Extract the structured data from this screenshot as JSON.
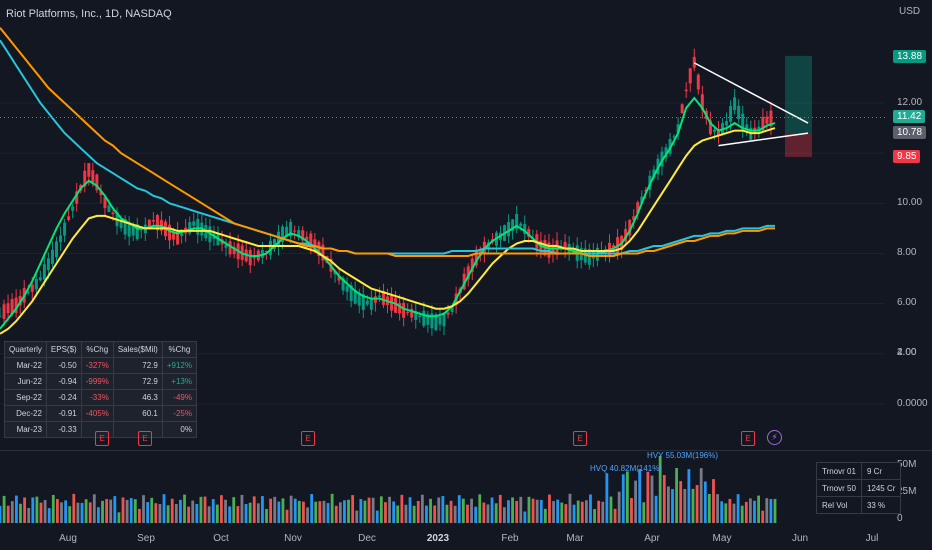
{
  "header": {
    "title": "Riot Platforms, Inc., 1D, NASDAQ",
    "currency": "USD"
  },
  "price_axis": [
    "12.00",
    "10.00",
    "8.00",
    "6.00",
    "4.00",
    "2.00",
    "0.0000"
  ],
  "price_tags": [
    {
      "label": "13.88",
      "color": "#089981"
    },
    {
      "label": "11.42",
      "color": "#22ab94"
    },
    {
      "label": "10.78",
      "color": "#5d606b"
    },
    {
      "label": "9.85",
      "color": "#f23645"
    }
  ],
  "volume_axis": [
    "50M",
    "25M",
    "0"
  ],
  "months": [
    "Aug",
    "Sep",
    "Oct",
    "Nov",
    "Dec",
    "2023",
    "Feb",
    "Mar",
    "Apr",
    "May",
    "Jun",
    "Jul"
  ],
  "eps_table": {
    "headers": [
      "Quarterly",
      "EPS($)",
      "%Chg",
      "Sales($Mil)",
      "%Chg"
    ],
    "rows": [
      [
        "Mar-22",
        "-0.50",
        "-327%",
        "72.9",
        "+912%"
      ],
      [
        "Jun-22",
        "-0.94",
        "-999%",
        "72.9",
        "+13%"
      ],
      [
        "Sep-22",
        "-0.24",
        "-33%",
        "46.3",
        "-49%"
      ],
      [
        "Dec-22",
        "-0.91",
        "-405%",
        "60.1",
        "-25%"
      ],
      [
        "Mar-23",
        "-0.33",
        "",
        "",
        "0%"
      ]
    ]
  },
  "turnover_table": [
    [
      "Trnovr 01",
      "9 Cr"
    ],
    [
      "Trnovr 50",
      "1245 Cr"
    ],
    [
      "Rel Vol",
      "33 %"
    ]
  ],
  "volume_notes": [
    "HVQ 40.82M(141%)",
    "HVY 55.03M(196%)"
  ],
  "earnings_marker": "E",
  "chart_data": {
    "type": "candlestick",
    "ylim": [
      -0.7,
      15.0
    ],
    "date_range": [
      "2022-07-05",
      "2023-05-19"
    ],
    "close_series_approx": [
      3.5,
      3.8,
      3.9,
      4.3,
      4.6,
      5.0,
      5.6,
      6.2,
      7.0,
      7.8,
      8.6,
      9.3,
      8.8,
      8.0,
      7.6,
      7.2,
      7.0,
      6.9,
      7.0,
      7.3,
      7.1,
      6.8,
      6.6,
      6.9,
      7.2,
      7.0,
      6.8,
      6.6,
      6.3,
      6.1,
      6.0,
      5.8,
      5.9,
      6.1,
      6.4,
      6.8,
      7.0,
      6.8,
      6.6,
      6.3,
      6.0,
      5.5,
      5.0,
      4.6,
      4.3,
      4.1,
      4.0,
      4.3,
      4.1,
      3.9,
      3.7,
      3.6,
      3.5,
      3.4,
      3.3,
      3.4,
      3.8,
      4.5,
      5.2,
      5.8,
      6.2,
      6.5,
      6.7,
      7.0,
      7.3,
      7.0,
      6.6,
      6.3,
      6.1,
      6.2,
      6.3,
      6.1,
      6.0,
      5.9,
      6.0,
      6.1,
      6.2,
      6.4,
      7.0,
      7.8,
      8.5,
      9.2,
      9.8,
      10.3,
      11.0,
      12.5,
      13.6,
      12.0,
      11.0,
      10.8,
      11.2,
      12.0,
      11.3,
      10.8,
      11.0,
      11.3,
      11.4
    ],
    "moving_averages": [
      {
        "color": "#00e676",
        "values": [
          3.0,
          3.4,
          3.8,
          4.3,
          4.9,
          5.6,
          6.3,
          7.0,
          7.6,
          8.1,
          8.6,
          8.9,
          8.7,
          8.3,
          7.8,
          7.4,
          7.2,
          7.0,
          7.0,
          7.1,
          7.1,
          6.9,
          6.8,
          6.9,
          7.0,
          7.0,
          6.8,
          6.6,
          6.4,
          6.2,
          6.0,
          5.9,
          5.9,
          6.0,
          6.3,
          6.6,
          6.8,
          6.7,
          6.5,
          6.2,
          5.9,
          5.5,
          5.1,
          4.8,
          4.5,
          4.3,
          4.2,
          4.2,
          4.1,
          4.0,
          3.8,
          3.7,
          3.6,
          3.5,
          3.5,
          3.6,
          3.9,
          4.5,
          5.1,
          5.7,
          6.2,
          6.5,
          6.7,
          6.9,
          7.1,
          6.9,
          6.6,
          6.3,
          6.2,
          6.2,
          6.2,
          6.1,
          6.0,
          6.0,
          6.0,
          6.1,
          6.2,
          6.4,
          6.9,
          7.6,
          8.4,
          9.1,
          9.7,
          10.2,
          10.8,
          11.8,
          12.2,
          11.8,
          11.2,
          10.9,
          11.0,
          11.2,
          11.0,
          10.9,
          10.9,
          11.1,
          11.2
        ]
      },
      {
        "color": "#ffeb3b",
        "values": [
          2.8,
          3.0,
          3.3,
          3.7,
          4.1,
          4.6,
          5.1,
          5.6,
          6.1,
          6.6,
          7.0,
          7.4,
          7.5,
          7.5,
          7.4,
          7.3,
          7.2,
          7.1,
          7.0,
          7.0,
          7.0,
          7.0,
          6.9,
          6.9,
          6.9,
          6.9,
          6.9,
          6.8,
          6.7,
          6.6,
          6.5,
          6.4,
          6.3,
          6.3,
          6.3,
          6.3,
          6.3,
          6.3,
          6.2,
          6.1,
          5.9,
          5.7,
          5.4,
          5.2,
          5.0,
          4.8,
          4.6,
          4.5,
          4.4,
          4.3,
          4.2,
          4.1,
          4.0,
          3.9,
          3.8,
          3.8,
          3.9,
          4.1,
          4.4,
          4.8,
          5.2,
          5.6,
          5.9,
          6.2,
          6.4,
          6.5,
          6.5,
          6.4,
          6.3,
          6.3,
          6.2,
          6.2,
          6.1,
          6.1,
          6.1,
          6.1,
          6.1,
          6.2,
          6.5,
          6.9,
          7.4,
          7.9,
          8.4,
          8.9,
          9.4,
          9.9,
          10.3,
          10.5,
          10.6,
          10.7,
          10.8,
          10.9,
          10.9,
          10.8,
          10.8,
          10.9,
          11.0
        ]
      },
      {
        "color": "#26c6da",
        "values": [
          14.5,
          14.0,
          13.5,
          13.0,
          12.5,
          12.0,
          11.6,
          11.2,
          10.8,
          10.5,
          10.2,
          9.9,
          9.6,
          9.4,
          9.2,
          9.0,
          8.8,
          8.6,
          8.5,
          8.3,
          8.2,
          8.0,
          7.9,
          7.8,
          7.7,
          7.6,
          7.5,
          7.4,
          7.3,
          7.2,
          7.1,
          7.0,
          6.9,
          6.8,
          6.7,
          6.6,
          6.5,
          6.4,
          6.4,
          6.3,
          6.2,
          6.2,
          6.1,
          6.1,
          6.0,
          6.0,
          6.0,
          6.0,
          6.0,
          6.0,
          6.0,
          6.0,
          6.0,
          6.0,
          6.0,
          6.0,
          6.1,
          6.1,
          6.1,
          6.1,
          6.2,
          6.2,
          6.2,
          6.2,
          6.2,
          6.2,
          6.2,
          6.1,
          6.1,
          6.0,
          6.0,
          6.0,
          6.0,
          6.0,
          6.0,
          6.0,
          6.0,
          6.0,
          6.1,
          6.1,
          6.2,
          6.3,
          6.3,
          6.4,
          6.5,
          6.6,
          6.7,
          6.7,
          6.8,
          6.8,
          6.9,
          6.9,
          7.0,
          7.0,
          7.0,
          7.1,
          7.1
        ]
      },
      {
        "color": "#ff9800",
        "values": [
          15.0,
          14.6,
          14.2,
          13.8,
          13.4,
          13.0,
          12.6,
          12.3,
          12.0,
          11.7,
          11.4,
          11.1,
          10.8,
          10.5,
          10.3,
          10.0,
          9.8,
          9.6,
          9.4,
          9.2,
          9.0,
          8.8,
          8.6,
          8.4,
          8.2,
          8.0,
          7.8,
          7.6,
          7.4,
          7.2,
          7.1,
          7.0,
          6.9,
          6.8,
          6.7,
          6.6,
          6.5,
          6.4,
          6.3,
          6.3,
          6.2,
          6.2,
          6.1,
          6.1,
          6.0,
          6.0,
          6.0,
          6.0,
          6.0,
          5.9,
          5.9,
          5.9,
          5.9,
          5.9,
          5.9,
          5.9,
          5.9,
          5.9,
          5.9,
          6.0,
          6.0,
          6.0,
          6.0,
          6.0,
          6.0,
          6.0,
          6.0,
          6.0,
          6.0,
          6.0,
          6.0,
          6.0,
          6.0,
          5.9,
          5.9,
          5.9,
          5.9,
          6.0,
          6.0,
          6.0,
          6.1,
          6.1,
          6.2,
          6.3,
          6.4,
          6.5,
          6.5,
          6.6,
          6.7,
          6.7,
          6.8,
          6.8,
          6.9,
          6.9,
          6.9,
          7.0,
          7.0
        ]
      }
    ],
    "triangle_pattern": {
      "upper": [
        [
          86,
          13.6
        ],
        [
          97,
          11.2
        ]
      ],
      "lower": [
        [
          89,
          10.3
        ],
        [
          97,
          10.8
        ]
      ]
    },
    "target_zone": {
      "profit_top": 13.88,
      "entry": 10.78,
      "stop": 9.85
    },
    "volume_ylim": [
      0,
      60
    ]
  }
}
